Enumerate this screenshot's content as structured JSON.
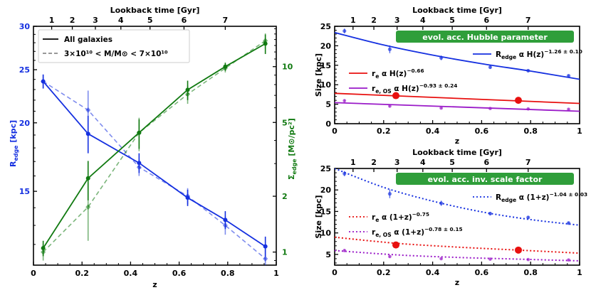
{
  "colors": {
    "blue": "#1530e0",
    "green": "#117a11",
    "red": "#e8100f",
    "purple": "#9a1ac8",
    "banner": "#2f9e3a"
  },
  "chart_data": [
    {
      "type": "line",
      "xlabel": "z",
      "top_xlabel": "Lookback time [Gyr]",
      "top_ticks": [
        "1",
        "2",
        "3",
        "4",
        "5",
        "6",
        "7"
      ],
      "top_tick_z": [
        0.075,
        0.16,
        0.255,
        0.36,
        0.48,
        0.62,
        0.79
      ],
      "xlim": [
        0,
        1
      ],
      "xticks": [
        "0",
        "0.2",
        "0.4",
        "0.6",
        "0.8",
        "1"
      ],
      "ylabel_left": "R",
      "ylabel_left_sub": "edge",
      "ylabel_left_unit": "[kpc]",
      "ylim_left": [
        11,
        30
      ],
      "yticks_left": [
        "15",
        "20",
        "25",
        "30"
      ],
      "ylabel_right": "Σ",
      "ylabel_right_sub": "edge",
      "ylabel_right_unit": "[M⊙/pc²]",
      "ylim_right": [
        0.85,
        16.5
      ],
      "log_scale": true,
      "yticks_right": [
        "1",
        "2",
        "5",
        "10"
      ],
      "legend": {
        "placement": "top-left",
        "all": "All galaxies",
        "mass_bin": "3×10¹⁰ < M/M⊙ < 7×10¹⁰"
      },
      "series": [
        {
          "name": "All galaxies",
          "axis": "left",
          "color": "blue",
          "dash": false,
          "x": [
            0.04,
            0.225,
            0.435,
            0.635,
            0.79,
            0.955
          ],
          "y": [
            23.8,
            19.1,
            16.9,
            14.6,
            13.3,
            11.9
          ],
          "err": [
            0.7,
            1.5,
            0.7,
            0.5,
            0.5,
            0.5
          ]
        },
        {
          "name": "3×10¹⁰ < M/M⊙ < 7×10¹⁰",
          "axis": "left",
          "color": "blue",
          "dash": true,
          "x": [
            0.04,
            0.225,
            0.435,
            0.635,
            0.79,
            0.955
          ],
          "y": [
            23.8,
            21.1,
            16.6,
            14.7,
            13.0,
            11.3
          ],
          "err": [
            0.7,
            1.8,
            0.6,
            0.5,
            0.5,
            0.5
          ]
        },
        {
          "name": "All galaxies",
          "axis": "right",
          "color": "green",
          "dash": false,
          "x": [
            0.04,
            0.225,
            0.435,
            0.635,
            0.79,
            0.955
          ],
          "y": [
            1.05,
            2.5,
            4.4,
            7.5,
            10.0,
            13.3
          ],
          "err": [
            0.1,
            0.6,
            0.8,
            0.9,
            0.5,
            1.6
          ]
        },
        {
          "name": "3×10¹⁰ < M/M⊙ < 7×10¹⁰",
          "axis": "right",
          "color": "green",
          "dash": true,
          "x": [
            0.04,
            0.225,
            0.435,
            0.635,
            0.79,
            0.955
          ],
          "y": [
            1.0,
            1.75,
            4.4,
            7.1,
            9.8,
            13.8
          ],
          "err": [
            0.1,
            0.6,
            0.9,
            0.8,
            0.5,
            1.3
          ]
        }
      ]
    },
    {
      "type": "line",
      "title": "evol. acc. Hubble parameter",
      "xlabel": "z",
      "ylabel": "Size [kpc]",
      "top_xlabel": "Lookback time [Gyr]",
      "top_ticks": [
        "1",
        "2",
        "3",
        "4",
        "5",
        "6",
        "7"
      ],
      "top_tick_z": [
        0.075,
        0.16,
        0.255,
        0.36,
        0.48,
        0.62,
        0.79
      ],
      "xlim": [
        0,
        1
      ],
      "ylim": [
        0,
        25
      ],
      "xticks": [
        "0",
        "0.2",
        "0.4",
        "0.6",
        "0.8",
        "1"
      ],
      "yticks": [
        "0",
        "5",
        "10",
        "15",
        "20",
        "25"
      ],
      "fit_labels": {
        "re": {
          "main": "R",
          "sub": "edge",
          "text": " α H(z)",
          "sup": "−1.26 ± 0.10"
        },
        "r": {
          "main": "r",
          "sub": "e",
          "text": " α H(z)",
          "sup": "−0.66"
        },
        "ros": {
          "main": "r",
          "sub": "e, OS",
          "text": " α H(z)",
          "sup": "−0.93 ± 0.24"
        }
      },
      "points_edge": {
        "x": [
          0.04,
          0.225,
          0.435,
          0.635,
          0.79,
          0.955
        ],
        "y": [
          23.8,
          19.1,
          16.9,
          14.5,
          13.6,
          12.3
        ],
        "err": [
          0.6,
          1.0,
          0.6,
          0.4,
          0.3,
          0.3
        ]
      },
      "points_os": {
        "x": [
          0.04,
          0.225,
          0.435,
          0.635,
          0.79,
          0.955
        ],
        "y": [
          5.9,
          4.5,
          4.0,
          3.9,
          3.8,
          3.7
        ],
        "err": [
          0.3,
          0.3,
          0.2,
          0.2,
          0.2,
          0.2
        ]
      },
      "points_re": {
        "x": [
          0.25,
          0.75
        ],
        "y": [
          7.2,
          6.0
        ]
      },
      "curve_edge": {
        "x": [
          0,
          0.2,
          0.4,
          0.6,
          0.8,
          1.0
        ],
        "y": [
          23.4,
          20.2,
          17.6,
          15.4,
          13.5,
          11.4
        ]
      },
      "curve_re": {
        "x": [
          0,
          1
        ],
        "y": [
          7.8,
          5.2
        ]
      },
      "curve_os": {
        "x": [
          0,
          1
        ],
        "y": [
          5.4,
          3.2
        ]
      }
    },
    {
      "type": "line",
      "title": "evol. acc. inv. scale factor",
      "xlabel": "z",
      "ylabel": "Size [kpc]",
      "top_xlabel": "Lookback time [Gyr]",
      "top_ticks": [
        "1",
        "2",
        "3",
        "4",
        "5",
        "6",
        "7"
      ],
      "top_tick_z": [
        0.075,
        0.16,
        0.255,
        0.36,
        0.48,
        0.62,
        0.79
      ],
      "xlim": [
        0,
        1
      ],
      "ylim": [
        2.5,
        25
      ],
      "xticks": [
        "0",
        "0.2",
        "0.4",
        "0.6",
        "0.8",
        "1"
      ],
      "yticks": [
        "5",
        "10",
        "15",
        "20",
        "25"
      ],
      "fit_labels": {
        "re": {
          "main": "R",
          "sub": "edge",
          "text": " α (1+z)",
          "sup": "−1.04 ± 0.03"
        },
        "r": {
          "main": "r",
          "sub": "e",
          "text": " α (1+z)",
          "sup": "−0.75"
        },
        "ros": {
          "main": "r",
          "sub": "e, OS",
          "text": " α (1+z)",
          "sup": "−0.78 ± 0.15"
        }
      },
      "points_edge": {
        "x": [
          0.04,
          0.225,
          0.435,
          0.635,
          0.79,
          0.955
        ],
        "y": [
          23.8,
          19.1,
          16.9,
          14.5,
          13.6,
          12.3
        ],
        "err": [
          0.6,
          1.0,
          0.6,
          0.4,
          0.3,
          0.3
        ]
      },
      "points_os": {
        "x": [
          0.04,
          0.225,
          0.435,
          0.635,
          0.79,
          0.955
        ],
        "y": [
          5.9,
          4.5,
          4.0,
          3.9,
          3.8,
          3.7
        ],
        "err": [
          0.3,
          0.3,
          0.2,
          0.2,
          0.2,
          0.2
        ]
      },
      "points_re": {
        "x": [
          0.25,
          0.75
        ],
        "y": [
          7.2,
          6.0
        ]
      },
      "curve_edge": {
        "x": [
          0,
          0.2,
          0.4,
          0.6,
          0.8,
          1.0
        ],
        "y": [
          25.0,
          20.6,
          17.4,
          14.9,
          13.1,
          11.8
        ]
      },
      "curve_re": {
        "x": [
          0,
          0.25,
          0.5,
          0.75,
          1.0
        ],
        "y": [
          9.0,
          7.6,
          6.7,
          6.0,
          5.3
        ]
      },
      "curve_os": {
        "x": [
          0,
          0.25,
          0.5,
          0.75,
          1.0
        ],
        "y": [
          5.9,
          4.9,
          4.3,
          3.9,
          3.5
        ]
      }
    }
  ]
}
